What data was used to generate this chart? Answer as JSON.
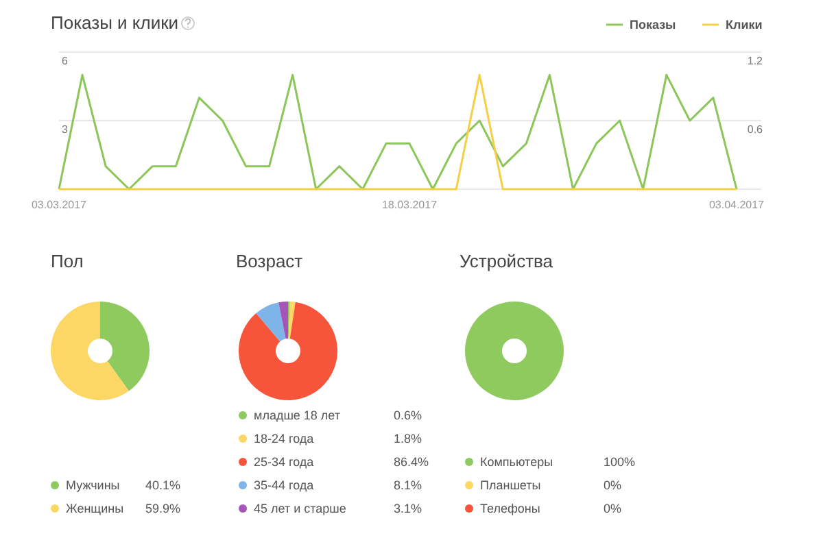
{
  "chart_data": [
    {
      "type": "line",
      "title": "Показы и клики",
      "categories": [
        "03.03.2017",
        null,
        null,
        null,
        null,
        null,
        null,
        null,
        null,
        null,
        null,
        null,
        null,
        null,
        null,
        "18.03.2017",
        null,
        null,
        null,
        null,
        null,
        null,
        null,
        null,
        null,
        null,
        null,
        null,
        null,
        "03.04.2017"
      ],
      "series": [
        {
          "name": "Показы",
          "color": "#8cc55a",
          "values": [
            0,
            5,
            1,
            0,
            1,
            1,
            4,
            3,
            1,
            1,
            5,
            0,
            1,
            0,
            2,
            2,
            0,
            2,
            3,
            1,
            2,
            5,
            0,
            2,
            3,
            0,
            5,
            3,
            4,
            0
          ]
        },
        {
          "name": "Клики",
          "color": "#f5cf46",
          "axis": "y2",
          "values": [
            0,
            0,
            0,
            0,
            0,
            0,
            0,
            0,
            0,
            0,
            0,
            0,
            0,
            0,
            0,
            0,
            0,
            0,
            1,
            0,
            0,
            0,
            0,
            0,
            0,
            0,
            0,
            0,
            0,
            0
          ]
        }
      ],
      "ylim": [
        0,
        6
      ],
      "yticks": [
        3,
        6
      ],
      "y2lim": [
        0,
        1.2
      ],
      "y2ticks": [
        0.6,
        1.2
      ],
      "grid": "y",
      "legend": "top right"
    },
    {
      "type": "donut",
      "title": "Пол",
      "categories": [
        "Мужчины",
        "Женщины"
      ],
      "values": [
        40.1,
        59.9
      ],
      "colors": [
        "#8fca5e",
        "#fdd766"
      ],
      "value_labels": [
        "40.1%",
        "59.9%"
      ],
      "legend": "bottom"
    },
    {
      "type": "donut",
      "title": "Возраст",
      "categories": [
        "младше 18 лет",
        "18-24 года",
        "25-34 года",
        "35-44 года",
        "45 лет и старше"
      ],
      "values": [
        0.6,
        1.8,
        86.4,
        8.1,
        3.1
      ],
      "colors": [
        "#8fca5e",
        "#fdd766",
        "#f7553b",
        "#7fb4e8",
        "#a654b8"
      ],
      "value_labels": [
        "0.6%",
        "1.8%",
        "86.4%",
        "8.1%",
        "3.1%"
      ],
      "legend": "bottom"
    },
    {
      "type": "donut",
      "title": "Устройства",
      "categories": [
        "Компьютеры",
        "Планшеты",
        "Телефоны"
      ],
      "values": [
        100,
        0,
        0
      ],
      "colors": [
        "#8fca5e",
        "#fdd766",
        "#f7553b"
      ],
      "value_labels": [
        "100%",
        "0%",
        "0%"
      ],
      "legend": "bottom"
    }
  ]
}
